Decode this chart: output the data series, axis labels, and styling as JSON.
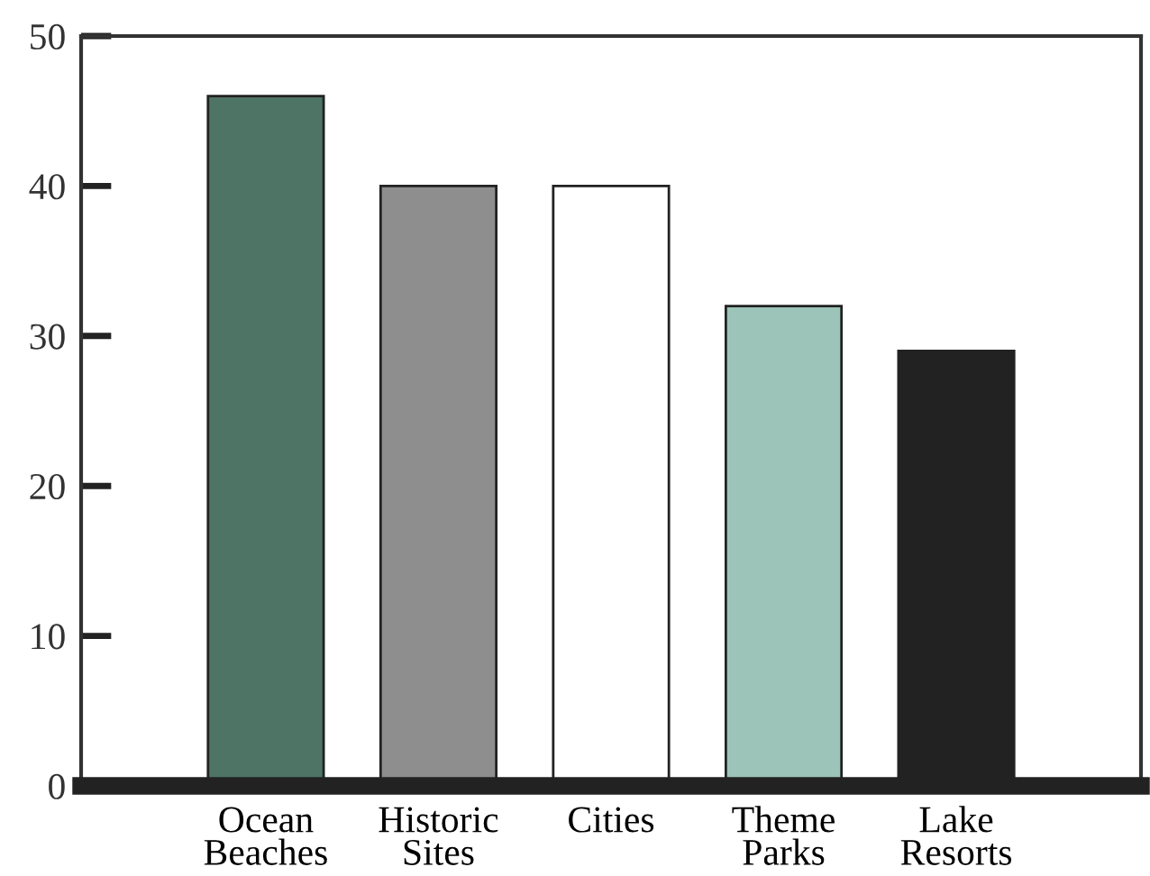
{
  "chart_data": {
    "type": "bar",
    "categories": [
      "Ocean\nBeaches",
      "Historic\nSites",
      "Cities",
      "Theme\nParks",
      "Lake\nResorts"
    ],
    "values": [
      46,
      40,
      40,
      32,
      29
    ],
    "colors": [
      "#4e7466",
      "#8e8e8e",
      "#ffffff",
      "#9cc4b8",
      "#222222"
    ],
    "ylim": [
      0,
      50
    ],
    "yticks": [
      0,
      10,
      20,
      30,
      40,
      50
    ],
    "grid": false
  }
}
